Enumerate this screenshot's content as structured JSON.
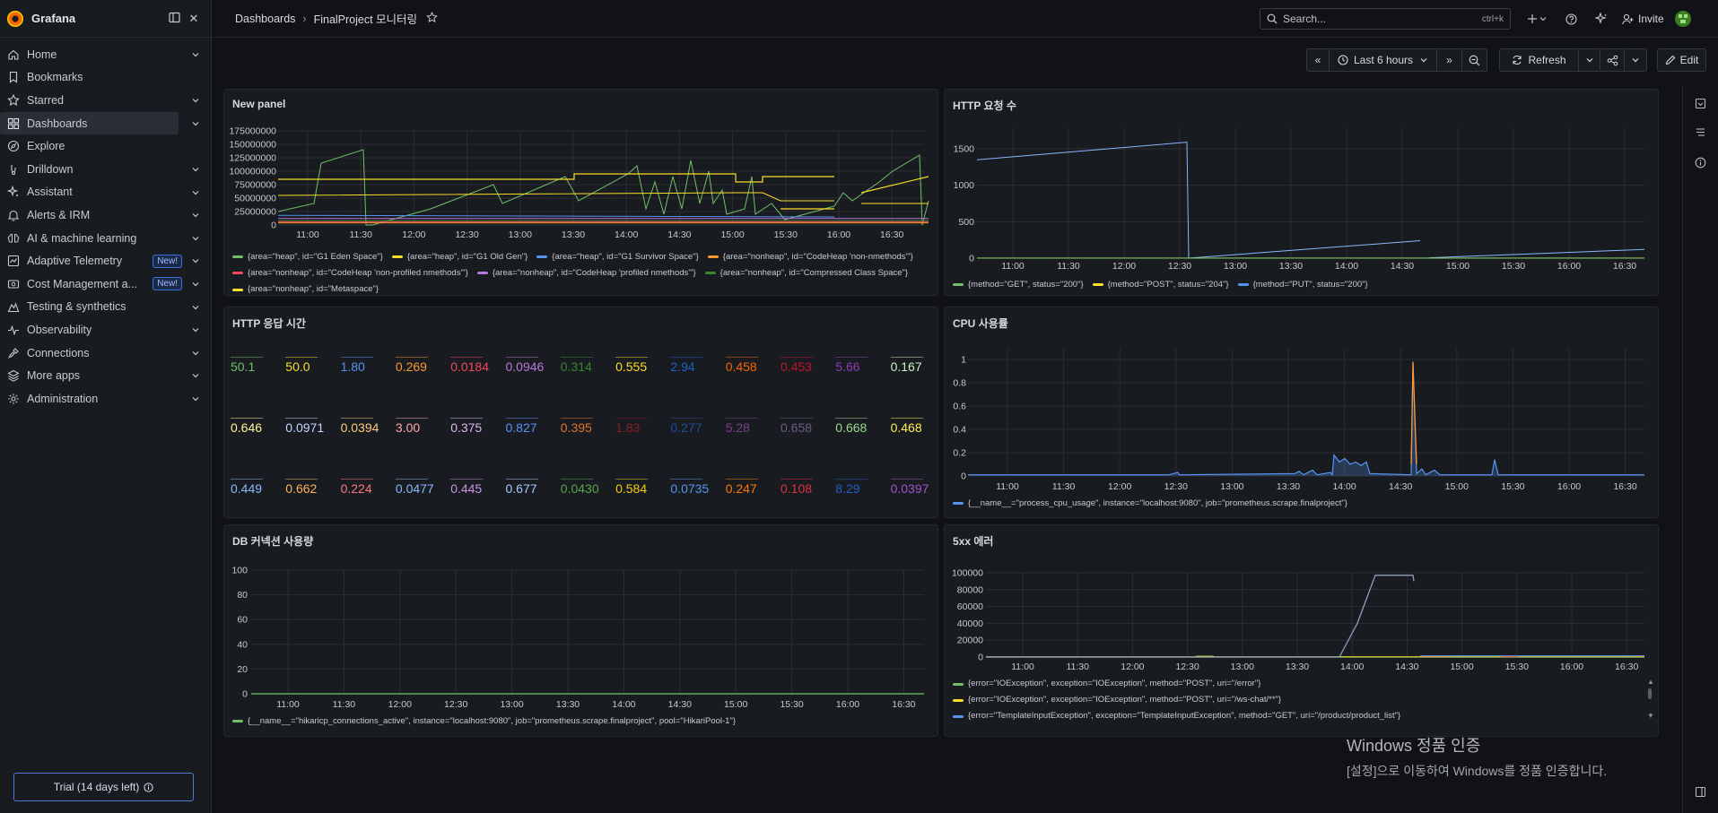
{
  "app": {
    "name": "Grafana"
  },
  "sidebar": {
    "items": [
      {
        "label": "Home",
        "icon": "home-icon"
      },
      {
        "label": "Bookmarks",
        "icon": "bookmark-icon"
      },
      {
        "label": "Starred",
        "icon": "star-icon"
      },
      {
        "label": "Dashboards",
        "icon": "apps-icon",
        "active": true
      },
      {
        "label": "Explore",
        "icon": "compass-icon"
      },
      {
        "label": "Drilldown",
        "icon": "drilldown-icon"
      },
      {
        "label": "Assistant",
        "icon": "sparkle-icon"
      },
      {
        "label": "Alerts & IRM",
        "icon": "bell-icon"
      },
      {
        "label": "AI & machine learning",
        "icon": "brain-icon"
      },
      {
        "label": "Adaptive Telemetry",
        "icon": "adaptive-icon",
        "badge": "New!"
      },
      {
        "label": "Cost Management a...",
        "icon": "dollar-icon",
        "badge": "New!"
      },
      {
        "label": "Testing & synthetics",
        "icon": "k6-icon"
      },
      {
        "label": "Observability",
        "icon": "heartbeat-icon"
      },
      {
        "label": "Connections",
        "icon": "plug-icon"
      },
      {
        "label": "More apps",
        "icon": "layers-icon"
      },
      {
        "label": "Administration",
        "icon": "cog-icon"
      }
    ],
    "trial": "Trial (14 days left)"
  },
  "topbar": {
    "breadcrumb": [
      "Dashboards",
      "FinalProject 모니터링"
    ],
    "search_placeholder": "Search...",
    "search_shortcut": "ctrl+k",
    "invite": "Invite"
  },
  "toolbar": {
    "time_range": "Last 6 hours",
    "refresh": "Refresh",
    "edit": "Edit"
  },
  "colors": {
    "green": "#73bf69",
    "yellow": "#fade2a",
    "blue": "#5794f2",
    "orange": "#ff9830",
    "red": "#f2495c",
    "purple": "#b877d9",
    "cyan": "#8ab8ff",
    "bg": "#111217",
    "panel": "#181b1f"
  },
  "time_ticks": [
    "11:00",
    "11:30",
    "12:00",
    "12:30",
    "13:00",
    "13:30",
    "14:00",
    "14:30",
    "15:00",
    "15:30",
    "16:00",
    "16:30"
  ],
  "panels": {
    "new_panel": {
      "title": "New panel",
      "yticks": [
        "175000000",
        "150000000",
        "125000000",
        "100000000",
        "75000000",
        "50000000",
        "25000000",
        "0"
      ],
      "legend": [
        {
          "label": "{area=\"heap\", id=\"G1 Eden Space\"}",
          "color": "#73bf69"
        },
        {
          "label": "{area=\"heap\", id=\"G1 Old Gen\"}",
          "color": "#fade2a"
        },
        {
          "label": "{area=\"heap\", id=\"G1 Survivor Space\"}",
          "color": "#5794f2"
        },
        {
          "label": "{area=\"nonheap\", id=\"CodeHeap 'non-nmethods'\"}",
          "color": "#ff9830"
        },
        {
          "label": "{area=\"nonheap\", id=\"CodeHeap 'non-profiled nmethods'\"}",
          "color": "#f2495c"
        },
        {
          "label": "{area=\"nonheap\", id=\"CodeHeap 'profiled nmethods'\"}",
          "color": "#b877d9"
        },
        {
          "label": "{area=\"nonheap\", id=\"Compressed Class Space\"}",
          "color": "#37872d"
        },
        {
          "label": "{area=\"nonheap\", id=\"Metaspace\"}",
          "color": "#fade2a"
        }
      ]
    },
    "http_requests": {
      "title": "HTTP 요청 수",
      "yticks": [
        "1500",
        "1000",
        "500",
        "0"
      ],
      "legend": [
        {
          "label": "{method=\"GET\", status=\"200\"}",
          "color": "#73bf69"
        },
        {
          "label": "{method=\"POST\", status=\"204\"}",
          "color": "#fade2a"
        },
        {
          "label": "{method=\"PUT\", status=\"200\"}",
          "color": "#5794f2"
        }
      ]
    },
    "http_latency": {
      "title": "HTTP 응답 시간",
      "stats": [
        {
          "value": "50.1",
          "color": "#73bf69"
        },
        {
          "value": "50.0",
          "color": "#fade2a"
        },
        {
          "value": "1.80",
          "color": "#5794f2"
        },
        {
          "value": "0.269",
          "color": "#ff9830"
        },
        {
          "value": "0.0184",
          "color": "#f2495c"
        },
        {
          "value": "0.0946",
          "color": "#b877d9"
        },
        {
          "value": "0.314",
          "color": "#37872d"
        },
        {
          "value": "0.555",
          "color": "#fade2a"
        },
        {
          "value": "2.94",
          "color": "#1f60c4"
        },
        {
          "value": "0.458",
          "color": "#fa6400"
        },
        {
          "value": "0.453",
          "color": "#c4162a"
        },
        {
          "value": "5.66",
          "color": "#8f3bb8"
        },
        {
          "value": "0.167",
          "color": "#c8f2c2"
        },
        {
          "value": "0.646",
          "color": "#fff899"
        },
        {
          "value": "0.0971",
          "color": "#c0d8ff"
        },
        {
          "value": "0.0394",
          "color": "#ffcb7d"
        },
        {
          "value": "3.00",
          "color": "#ffa6b0"
        },
        {
          "value": "0.375",
          "color": "#deb6f2"
        },
        {
          "value": "0.827",
          "color": "#5794f2"
        },
        {
          "value": "0.395",
          "color": "#e0752d"
        },
        {
          "value": "1.83",
          "color": "#8a1f26"
        },
        {
          "value": "0.277",
          "color": "#1f4e99"
        },
        {
          "value": "5.28",
          "color": "#7b3f8c"
        },
        {
          "value": "0.658",
          "color": "#6d5b8a"
        },
        {
          "value": "0.668",
          "color": "#96d98d"
        },
        {
          "value": "0.468",
          "color": "#ffee52"
        },
        {
          "value": "0.449",
          "color": "#8ab8ff"
        },
        {
          "value": "0.662",
          "color": "#ffb357"
        },
        {
          "value": "0.224",
          "color": "#ff7383"
        },
        {
          "value": "0.0477",
          "color": "#8ab8ff"
        },
        {
          "value": "0.445",
          "color": "#ca95e5"
        },
        {
          "value": "0.677",
          "color": "#a6c8ff"
        },
        {
          "value": "0.0430",
          "color": "#56a64b"
        },
        {
          "value": "0.584",
          "color": "#f2cc0c"
        },
        {
          "value": "0.0735",
          "color": "#5794f2"
        },
        {
          "value": "0.247",
          "color": "#ff7a00"
        },
        {
          "value": "0.108",
          "color": "#e02f44"
        },
        {
          "value": "8.29",
          "color": "#1f60c4"
        },
        {
          "value": "0.0397",
          "color": "#a352cc"
        }
      ]
    },
    "cpu": {
      "title": "CPU 사용률",
      "yticks": [
        "1",
        "0.8",
        "0.6",
        "0.4",
        "0.2",
        "0"
      ],
      "legend": [
        {
          "label": "{__name__=\"process_cpu_usage\", instance=\"localhost:9080\", job=\"prometheus.scrape.finalproject\"}",
          "color": "#5794f2"
        }
      ]
    },
    "db_conn": {
      "title": "DB 커넥션 사용량",
      "yticks": [
        "100",
        "80",
        "60",
        "40",
        "20",
        "0"
      ],
      "legend": [
        {
          "label": "{__name__=\"hikaricp_connections_active\", instance=\"localhost:9080\", job=\"prometheus.scrape.finalproject\", pool=\"HikariPool-1\"}",
          "color": "#73bf69"
        }
      ]
    },
    "errors5xx": {
      "title": "5xx 에러",
      "yticks": [
        "100000",
        "80000",
        "60000",
        "40000",
        "20000",
        "0"
      ],
      "legend": [
        {
          "label": "{error=\"IOException\", exception=\"IOException\", method=\"POST\", uri=\"/error\"}",
          "color": "#73bf69"
        },
        {
          "label": "{error=\"IOException\", exception=\"IOException\", method=\"POST\", uri=\"/ws-chat/**\"}",
          "color": "#fade2a"
        },
        {
          "label": "{error=\"TemplateInputException\", exception=\"TemplateInputException\", method=\"GET\", uri=\"/product/product_list\"}",
          "color": "#5794f2"
        }
      ]
    }
  },
  "watermark": {
    "line1": "Windows 정품 인증",
    "line2": "[설정]으로 이동하여 Windows를 정품 인증합니다."
  }
}
